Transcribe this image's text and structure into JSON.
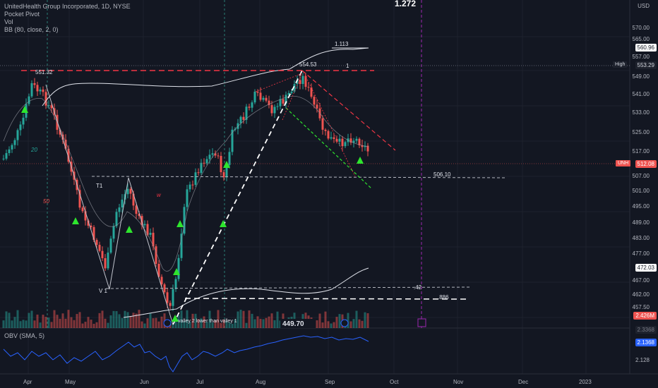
{
  "legend": {
    "title": "UnitedHealth Group Incorporated, 1D, NYSE",
    "line2": "Pocket Pivot",
    "line3": "Vol",
    "line4": "BB (80, close, 2, 0)"
  },
  "currency": "USD",
  "top_label": "1.272",
  "price_axis": {
    "ticks": [
      "570.00",
      "565.00",
      "557.00",
      "549.00",
      "541.00",
      "533.00",
      "525.00",
      "517.00",
      "507.00",
      "501.00",
      "495.00",
      "489.00",
      "483.00",
      "477.00",
      "467.00",
      "462.00",
      "457.50"
    ],
    "badges": {
      "bb_upper": "560.96",
      "high_label": "High",
      "high_value": "553.29",
      "symbol": "UNH",
      "last": "512.08",
      "bb_lower": "472.03",
      "volume": "2.426M",
      "obv": "2.1368",
      "obv_tick": "2.128",
      "obv_top": "2.3368"
    }
  },
  "time_axis": [
    "Apr",
    "May",
    "Jun",
    "Jul",
    "Aug",
    "Sep",
    "Oct",
    "Nov",
    "Dec",
    "2023"
  ],
  "annotations": {
    "peak1": "551.32",
    "peak2": "554.53",
    "fib_1113": "1.113",
    "fib_1": "1",
    "level_50610": "506.10",
    "fib_42": ".42",
    "fib_886": ".886",
    "valley_low": "449.70",
    "t1": "T1",
    "w": "w",
    "v1": "V 1",
    "valley_note": "valley 2 lower than valley 1",
    "ma20": "20",
    "ma50": "50"
  },
  "obv_label": "OBV (SMA, 5)",
  "colors": {
    "up": "#26a69a",
    "down": "#ef5350",
    "accent_red": "#f23645",
    "arrow": "#2ee52e",
    "purple": "#9c27b0"
  }
}
